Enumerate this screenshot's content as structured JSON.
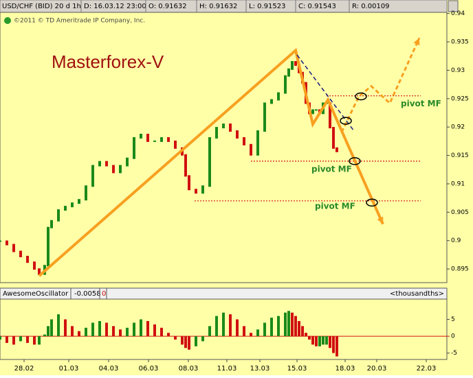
{
  "header": {
    "symbol": "USD/CHF (BID) 20 d 1h",
    "fields": [
      "D: 16.03.12 23:00",
      "O: 0.91632",
      "H: 0.91632",
      "L: 0.91523",
      "C: 0.91543",
      "R: 0.00109"
    ]
  },
  "chart_data": [
    {
      "type": "candlestick",
      "title": "Masterforex-V",
      "copyright": "©2011 © TD Ameritrade IP Company, Inc.",
      "up_color": "#1a8a1a",
      "down_color": "#d01010",
      "x": [
        0,
        10,
        20,
        30,
        40,
        50,
        57,
        65,
        70,
        75,
        85,
        95,
        105,
        115,
        125,
        135,
        145,
        155,
        165,
        175,
        185,
        195,
        205,
        215,
        225,
        235,
        245,
        255,
        265,
        270,
        275,
        285,
        295,
        305,
        315,
        325,
        335,
        345,
        355,
        365,
        375,
        385,
        395,
        405,
        415,
        420,
        425,
        430,
        435,
        440,
        445,
        450,
        455,
        460,
        465,
        470,
        475,
        480,
        485,
        490
      ],
      "values": [
        0.8999,
        0.8993,
        0.8981,
        0.8972,
        0.8962,
        0.895,
        0.8941,
        0.8956,
        0.9023,
        0.9035,
        0.9054,
        0.906,
        0.9066,
        0.9072,
        0.9096,
        0.9132,
        0.9139,
        0.9132,
        0.912,
        0.9132,
        0.9145,
        0.9181,
        0.9187,
        0.9175,
        0.9175,
        0.9181,
        0.9175,
        0.9163,
        0.9151,
        0.9114,
        0.909,
        0.9084,
        0.9096,
        0.9181,
        0.9199,
        0.9205,
        0.9193,
        0.9181,
        0.9169,
        0.9151,
        0.9193,
        0.9242,
        0.9248,
        0.926,
        0.929,
        0.9302,
        0.9315,
        0.9309,
        0.9296,
        0.9278,
        0.9242,
        0.9224,
        0.923,
        0.923,
        0.9224,
        0.9242,
        0.9242,
        0.9199,
        0.9163,
        0.9157
      ],
      "xlim": [
        0,
        650
      ],
      "ylim": [
        0.8926,
        0.9402
      ],
      "yticks": [
        0.94,
        0.935,
        0.93,
        0.925,
        0.92,
        0.915,
        0.91,
        0.905,
        0.9,
        0.895
      ],
      "levels": [
        {
          "value": 0.9255,
          "x": [
            475,
            612
          ],
          "label": "pivot MF"
        },
        {
          "value": 0.914,
          "x": [
            365,
            612
          ],
          "label": "pivot MF"
        },
        {
          "value": 0.907,
          "x": [
            283,
            612
          ],
          "label": "pivot MF"
        }
      ],
      "level_color": "#d01010",
      "trend_lines": [
        {
          "x": [
            57,
            430,
            455,
            477,
            557
          ],
          "y": [
            0.8938,
            0.9335,
            0.9205,
            0.9248,
            0.9029
          ],
          "color": "#f7a020",
          "dashed": false
        },
        {
          "x": [
            497,
            522,
            540,
            567,
            610
          ],
          "y": [
            0.9191,
            0.9254,
            0.9272,
            0.9242,
            0.9357
          ],
          "color": "#f7a020",
          "dashed": true
        },
        {
          "x": [
            432,
            515
          ],
          "y": [
            0.9327,
            0.9193
          ],
          "color": "#1a1a80",
          "dashed": true
        }
      ],
      "markers": {
        "x": [
          503,
          525,
          516,
          541
        ],
        "y": [
          0.9211,
          0.9254,
          0.914,
          0.9067
        ]
      }
    },
    {
      "type": "histogram",
      "title": "AwesomeOscillator",
      "last_value": "-0.0058",
      "flag": "0",
      "units": "<thousandths>",
      "up_color": "#1a8a1a",
      "down_color": "#d01010",
      "zero_color": "#d01010",
      "values": [
        -1,
        -2,
        -2.5,
        -1.5,
        -2,
        -2.5,
        -2.5,
        0.5,
        3,
        5,
        6.5,
        5,
        3,
        1.5,
        2.5,
        4,
        4.5,
        4,
        3,
        2,
        2.5,
        4,
        5,
        4.5,
        3.5,
        2.5,
        1,
        -1,
        -2.5,
        -3.5,
        -4,
        -3,
        -1.5,
        3,
        6,
        7,
        6.5,
        5,
        3,
        1,
        2,
        4,
        5.5,
        6,
        7,
        7.5,
        7,
        6,
        4.5,
        3,
        1,
        -1,
        -2.5,
        -3,
        -3,
        -2.5,
        -2.5,
        -3.5,
        -5,
        -6
      ],
      "ylim": [
        -6.5,
        10.8
      ],
      "yticks": [
        5,
        0,
        -5
      ],
      "xticks": [
        {
          "value": 35,
          "label": "28.02"
        },
        {
          "value": 100,
          "label": "01.03"
        },
        {
          "value": 158,
          "label": "04.03"
        },
        {
          "value": 216,
          "label": "06.03"
        },
        {
          "value": 274,
          "label": "08.03"
        },
        {
          "value": 330,
          "label": "11.03"
        },
        {
          "value": 378,
          "label": "13.03"
        },
        {
          "value": 432,
          "label": "15.03"
        },
        {
          "value": 502,
          "label": "18.03"
        },
        {
          "value": 548,
          "label": "20.03"
        },
        {
          "value": 620,
          "label": "22.03"
        }
      ]
    }
  ]
}
